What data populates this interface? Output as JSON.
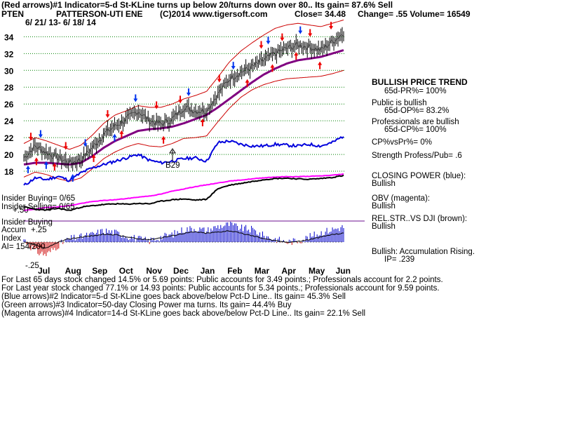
{
  "header": {
    "line1": "(Red arrows)#1 Indicator=5-d St-KLine turns up below 20/turns down over 80.. Its gain= 87.6% Sell",
    "ticker": "PTEN",
    "company": "PATTERSON-UTI ENE",
    "copyright": "(C)2014 www.tigersoft.com",
    "close": "Close=  34.48",
    "change": "Change= .55 Volume= 16549",
    "daterange": "6/ 21/ 13-  6/ 18/ 14"
  },
  "chart_data": {
    "type": "line",
    "title": "PTEN  PATTERSON-UTI ENE",
    "ylim": [
      17,
      35.2
    ],
    "yticks": [
      18,
      20,
      22,
      24,
      26,
      28,
      30,
      32,
      34
    ],
    "months": [
      "Jul",
      "Aug",
      "Sep",
      "Oct",
      "Nov",
      "Dec",
      "Jan",
      "Feb",
      "Mar",
      "Apr",
      "May",
      "Jun"
    ],
    "series": [
      {
        "values": [
          19.6,
          21.0,
          20.2,
          19.6,
          19.0,
          19.4,
          20.8,
          22.4,
          23.4,
          24.2,
          25.2,
          24.0,
          23.6,
          24.2,
          25.6,
          25.2,
          25.2,
          27.2,
          29.0,
          29.8,
          30.4,
          31.2,
          32.0,
          32.6,
          33.0,
          32.8,
          32.4,
          33.4,
          34.48
        ]
      },
      {
        "values": [
          18.8,
          19.0,
          19.0,
          18.9,
          18.8,
          19.0,
          19.8,
          20.8,
          21.6,
          22.2,
          22.8,
          23.0,
          23.1,
          23.3,
          23.7,
          24.2,
          24.7,
          25.6,
          26.6,
          27.6,
          28.6,
          29.5,
          30.2,
          30.8,
          31.2,
          31.4,
          31.6,
          32.0,
          32.4
        ]
      },
      {
        "values": [
          21.3,
          22.0,
          21.6,
          21.1,
          20.6,
          21.1,
          22.3,
          23.7,
          24.7,
          25.2,
          25.8,
          25.6,
          25.6,
          26.0,
          26.6,
          27.0,
          27.5,
          29.2,
          31.0,
          32.3,
          33.3,
          34.2,
          35.0,
          35.4,
          35.6,
          35.4,
          35.2,
          35.6,
          36.0
        ]
      },
      {
        "values": [
          17.3,
          17.9,
          17.6,
          17.1,
          16.8,
          17.2,
          18.3,
          19.5,
          20.3,
          20.9,
          21.3,
          21.0,
          20.9,
          21.3,
          21.9,
          22.0,
          22.2,
          23.9,
          25.5,
          26.8,
          27.7,
          28.3,
          28.7,
          29.0,
          29.1,
          29.2,
          29.3,
          29.6,
          30.0
        ]
      }
    ],
    "arrow_labels": [
      "B29"
    ]
  },
  "right_panel": {
    "trend_title": "BULLISH PRICE TREND",
    "trend_value": "65d-PR%= 100%",
    "public_title": "Public is bullish",
    "public_value": "65d-OP%= 83.2%",
    "prof_title": "Professionals are bullish",
    "prof_value": "65d-CP%= 100%",
    "cpvspr": "CP%vsPr%=  0%",
    "strength": "Strength Profess/Pub= .6",
    "closing_power": "CLOSING POWER (blue):",
    "closing_power_val": "Bullish",
    "obv": "OBV (magenta):",
    "obv_val": "Bullish",
    "relstr": "REL.STR..VS DJI (brown):",
    "relstr_val": "Bullish",
    "accum": "Bullish: Accumulation Rising.",
    "ip": "IP=  .239"
  },
  "left_panel": {
    "insider_buying": "Insider Buying= 0/65",
    "insider_selling": "Insider Selling= 0/65",
    "insider_buying2": "Insider Buying",
    "accum_label": "Accum",
    "index_label": "Index",
    "ai": "AI= 154/200",
    "plus50": "+.50",
    "plus25": "+.25",
    "minus25": "-.25"
  },
  "footer": [
    "For Last 65 days stock changed  14.5% or  5.69 points:  Public accounts for  3.49 points.;  Professionals account for  2.2 points.",
    "For Last year stock changed  77.1% or  14.93 points:  Public accounts for  5.34 points.;  Professionals account for  9.59 points.",
    "(Blue arrows)#2 Indicator=5-d St-KLine goes back above/below Pct-D Line.. Its gain= 45.3% Sell",
    "(Green arrows)#3 Indicator=50-day Closing Power ma turns. Its gain= 44.4% Buy",
    "(Magenta arrows)#4 Indicator=14-d St-KLine goes back above/below Pct-D Line.. Its gain= 22.1% Sell"
  ],
  "colors": {
    "price": "#000000",
    "ma": "#800080",
    "band": "#cc0000",
    "closing_power": "#0000dd",
    "obv": "#ff00ff",
    "relstr": "#8b4513",
    "accum_pos": "#0000cc",
    "accum_neg": "#cc0000",
    "grid": "#008000"
  }
}
